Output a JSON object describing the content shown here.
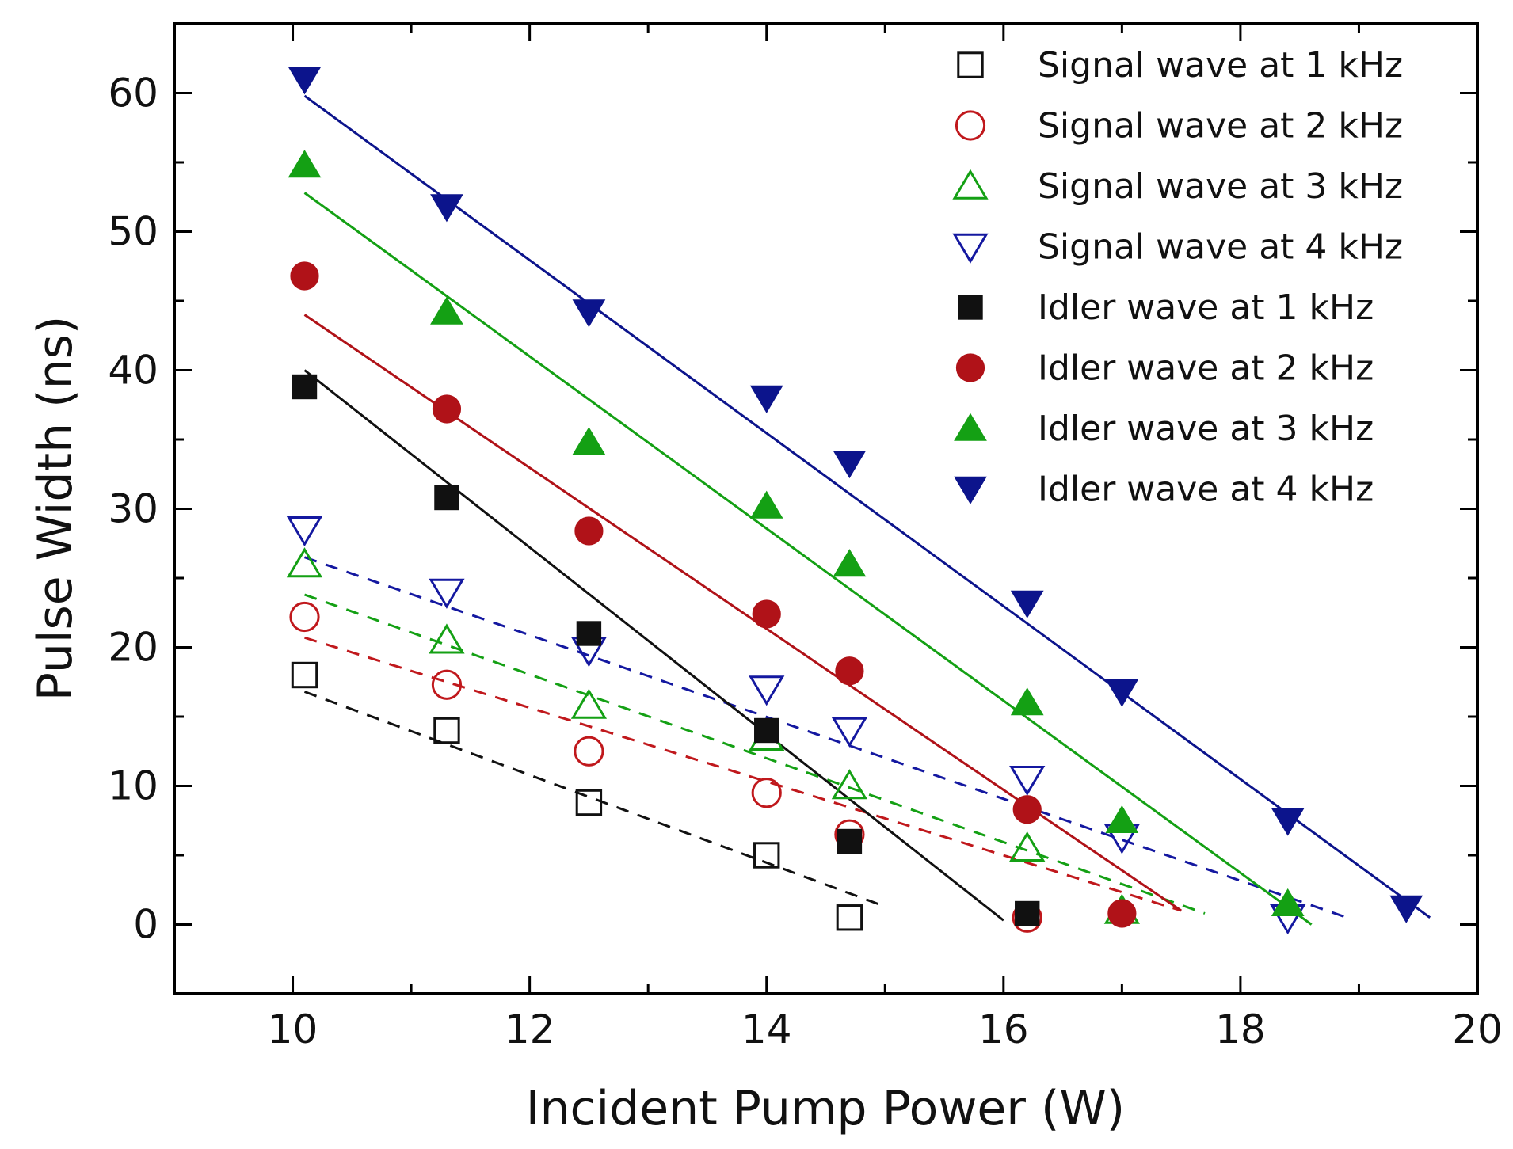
{
  "chart_data": {
    "type": "scatter",
    "title": "",
    "xlabel": "Incident Pump Power (W)",
    "ylabel": "Pulse Width (ns)",
    "xlim": [
      9,
      20
    ],
    "ylim": [
      -5,
      65
    ],
    "x_ticks": [
      10,
      12,
      14,
      16,
      18,
      20
    ],
    "y_ticks": [
      0,
      10,
      20,
      30,
      40,
      50,
      60
    ],
    "grid": false,
    "legend_position": "top-right",
    "series": [
      {
        "name": "Signal wave at 1 kHz",
        "marker": "square",
        "filled": false,
        "color": "#111111",
        "line_style": "dashed",
        "x": [
          10.1,
          11.3,
          12.5,
          14.0,
          14.7
        ],
        "y": [
          18.0,
          14.0,
          8.8,
          5.0,
          0.5
        ],
        "fit": [
          [
            10.1,
            16.8
          ],
          [
            15.0,
            1.3
          ]
        ]
      },
      {
        "name": "Signal wave at 2 kHz",
        "marker": "circle",
        "filled": false,
        "color": "#c0181c",
        "line_style": "dashed",
        "x": [
          10.1,
          11.3,
          12.5,
          14.0,
          14.7,
          16.2
        ],
        "y": [
          22.2,
          17.3,
          12.5,
          9.5,
          6.5,
          0.5
        ],
        "fit": [
          [
            10.1,
            20.7
          ],
          [
            17.5,
            1.0
          ]
        ]
      },
      {
        "name": "Signal wave at 3 kHz",
        "marker": "triangle-up",
        "filled": false,
        "color": "#14a014",
        "line_style": "dashed",
        "x": [
          10.1,
          11.3,
          12.5,
          14.0,
          14.7,
          16.2,
          17.0
        ],
        "y": [
          26.0,
          20.5,
          15.8,
          13.5,
          10.0,
          5.5,
          1.0
        ],
        "fit": [
          [
            10.1,
            23.8
          ],
          [
            17.7,
            0.8
          ]
        ]
      },
      {
        "name": "Signal wave at 4 kHz",
        "marker": "triangle-down",
        "filled": false,
        "color": "#1418a0",
        "line_style": "dashed",
        "x": [
          10.1,
          11.3,
          12.5,
          14.0,
          14.7,
          16.2,
          17.0,
          18.4
        ],
        "y": [
          28.5,
          24.0,
          19.8,
          17.0,
          14.0,
          10.5,
          6.3,
          0.5
        ],
        "fit": [
          [
            10.1,
            26.5
          ],
          [
            18.9,
            0.5
          ]
        ]
      },
      {
        "name": "Idler wave at 1 kHz",
        "marker": "square",
        "filled": true,
        "color": "#111111",
        "line_style": "solid",
        "x": [
          10.1,
          11.3,
          12.5,
          14.0,
          14.7,
          16.2
        ],
        "y": [
          38.8,
          30.8,
          21.0,
          14.0,
          6.0,
          0.8
        ],
        "fit": [
          [
            10.1,
            40.0
          ],
          [
            16.0,
            0.3
          ]
        ]
      },
      {
        "name": "Idler wave at 2 kHz",
        "marker": "circle",
        "filled": true,
        "color": "#b01218",
        "line_style": "solid",
        "x": [
          10.1,
          11.3,
          12.5,
          14.0,
          14.7,
          16.2,
          17.0
        ],
        "y": [
          46.8,
          37.2,
          28.4,
          22.4,
          18.3,
          8.3,
          0.8
        ],
        "fit": [
          [
            10.1,
            44.0
          ],
          [
            17.5,
            1.0
          ]
        ]
      },
      {
        "name": "Idler wave at 3 kHz",
        "marker": "triangle-up",
        "filled": true,
        "color": "#14a014",
        "line_style": "solid",
        "x": [
          10.1,
          11.3,
          12.5,
          14.0,
          14.7,
          16.2,
          17.0,
          18.4
        ],
        "y": [
          54.8,
          44.2,
          34.8,
          30.2,
          26.0,
          16.0,
          7.5,
          1.5
        ],
        "fit": [
          [
            10.1,
            52.8
          ],
          [
            18.6,
            0.0
          ]
        ]
      },
      {
        "name": "Idler wave at 4 kHz",
        "marker": "triangle-down",
        "filled": true,
        "color": "#0c148c",
        "line_style": "solid",
        "x": [
          10.1,
          11.3,
          12.5,
          14.0,
          14.7,
          16.2,
          17.0,
          18.4,
          19.4
        ],
        "y": [
          61.0,
          51.8,
          44.2,
          38.0,
          33.3,
          23.2,
          16.8,
          7.5,
          1.2
        ],
        "fit": [
          [
            10.1,
            59.8
          ],
          [
            19.6,
            0.5
          ]
        ]
      }
    ]
  }
}
